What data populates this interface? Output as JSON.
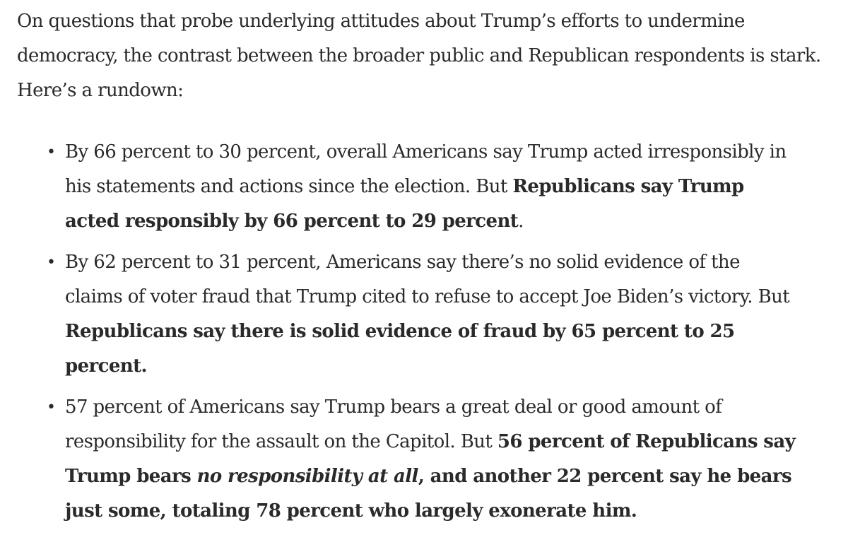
{
  "intro": "On questions that probe underlying attitudes about Trump’s efforts to undermine democracy, the contrast between the broader public and Republican respondents is stark. Here’s a rundown:",
  "items": [
    {
      "text": "By 66 percent to 30 percent, overall Americans say Trump acted irresponsibly in his statements and actions since the election. But ",
      "bold": "Republicans say Trump acted responsibly by 66 percent to 29 percent",
      "tail": "."
    },
    {
      "text": "By 62 percent to 31 percent, Americans say there’s no solid evidence of the claims of voter fraud that Trump cited to refuse to accept Joe Biden’s victory. But ",
      "bold": "Republicans say there is solid evidence of fraud by 65 percent to 25 percent."
    },
    {
      "text": "57 percent of Americans say Trump bears a great deal or good amount of responsibility for the assault on the Capitol. But ",
      "bold_a": "56 percent of Republicans say Trump bears ",
      "bold_italic": "no responsibility at all",
      "bold_b": ", and another 22 percent say he bears just some, totaling 78 percent who largely exonerate him."
    }
  ],
  "bullet_glyph": "•"
}
